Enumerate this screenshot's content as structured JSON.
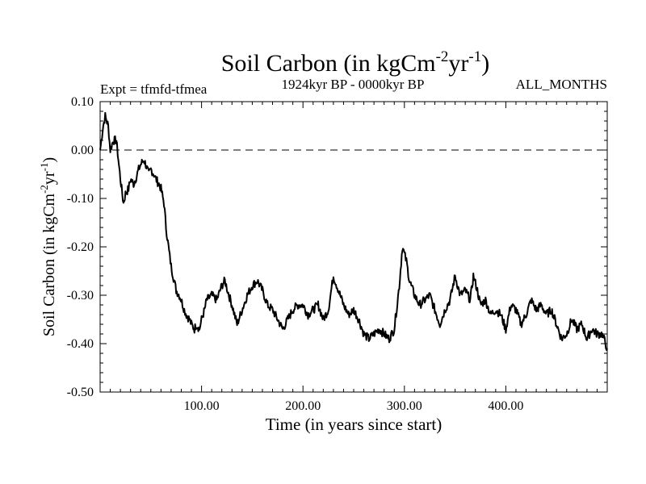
{
  "chart_data": {
    "type": "line",
    "title": "Soil Carbon (in kgCm",
    "title_sup1": "-2",
    "title_mid": "yr",
    "title_sup2": "-1",
    "title_end": ")",
    "subtitle": "1924kyr BP - 0000kyr BP",
    "experiment_label": "Expt = tfmfd-tfmea",
    "period_label": "ALL_MONTHS",
    "xlabel": "Time (in years since start)",
    "ylabel": "Soil Carbon (in kgCm",
    "ylabel_sup1": "-2",
    "ylabel_mid": "yr",
    "ylabel_sup2": "-1",
    "ylabel_end": ")",
    "xlim": [
      0,
      500
    ],
    "ylim": [
      -0.5,
      0.1
    ],
    "x_ticks": [
      100,
      200,
      300,
      400
    ],
    "x_tick_labels": [
      "100.00",
      "200.00",
      "300.00",
      "400.00"
    ],
    "y_ticks": [
      0.1,
      0.0,
      -0.1,
      -0.2,
      -0.3,
      -0.4,
      -0.5
    ],
    "y_tick_labels": [
      "0.10",
      "0.00",
      "-0.10",
      "-0.20",
      "-0.30",
      "-0.40",
      "-0.50"
    ],
    "reference_line": 0.0,
    "line_color": "#000000",
    "series": [
      {
        "name": "Soil Carbon",
        "x": [
          0,
          3,
          5,
          8,
          10,
          13,
          16,
          18,
          20,
          23,
          25,
          28,
          30,
          33,
          35,
          38,
          40,
          43,
          45,
          48,
          50,
          53,
          55,
          58,
          60,
          63,
          65,
          68,
          70,
          73,
          75,
          78,
          80,
          83,
          85,
          88,
          90,
          93,
          95,
          98,
          100,
          103,
          105,
          110,
          115,
          120,
          123,
          127,
          130,
          135,
          140,
          145,
          150,
          155,
          160,
          165,
          170,
          175,
          180,
          185,
          190,
          195,
          200,
          205,
          210,
          215,
          220,
          225,
          230,
          235,
          240,
          245,
          250,
          255,
          260,
          265,
          270,
          275,
          280,
          285,
          290,
          295,
          298,
          302,
          305,
          310,
          315,
          320,
          325,
          330,
          335,
          340,
          345,
          350,
          355,
          360,
          365,
          368,
          372,
          375,
          380,
          385,
          390,
          395,
          400,
          405,
          410,
          415,
          420,
          425,
          430,
          435,
          440,
          445,
          450,
          455,
          460,
          465,
          470,
          475,
          480,
          485,
          490,
          495,
          500
        ],
        "values": [
          0.0,
          0.05,
          0.07,
          0.05,
          0.0,
          0.02,
          0.02,
          -0.02,
          -0.06,
          -0.11,
          -0.09,
          -0.08,
          -0.06,
          -0.07,
          -0.06,
          -0.04,
          -0.03,
          -0.02,
          -0.03,
          -0.05,
          -0.04,
          -0.05,
          -0.06,
          -0.07,
          -0.08,
          -0.11,
          -0.16,
          -0.21,
          -0.24,
          -0.27,
          -0.29,
          -0.3,
          -0.31,
          -0.33,
          -0.34,
          -0.35,
          -0.36,
          -0.37,
          -0.36,
          -0.37,
          -0.35,
          -0.33,
          -0.31,
          -0.3,
          -0.31,
          -0.28,
          -0.27,
          -0.3,
          -0.32,
          -0.36,
          -0.33,
          -0.3,
          -0.28,
          -0.27,
          -0.29,
          -0.32,
          -0.33,
          -0.35,
          -0.37,
          -0.35,
          -0.33,
          -0.32,
          -0.32,
          -0.34,
          -0.33,
          -0.32,
          -0.35,
          -0.33,
          -0.26,
          -0.29,
          -0.32,
          -0.34,
          -0.33,
          -0.35,
          -0.38,
          -0.39,
          -0.38,
          -0.37,
          -0.38,
          -0.39,
          -0.37,
          -0.28,
          -0.2,
          -0.23,
          -0.27,
          -0.3,
          -0.32,
          -0.31,
          -0.3,
          -0.33,
          -0.36,
          -0.33,
          -0.31,
          -0.26,
          -0.3,
          -0.29,
          -0.31,
          -0.26,
          -0.29,
          -0.32,
          -0.31,
          -0.34,
          -0.33,
          -0.34,
          -0.37,
          -0.32,
          -0.33,
          -0.36,
          -0.34,
          -0.31,
          -0.33,
          -0.32,
          -0.34,
          -0.33,
          -0.36,
          -0.39,
          -0.38,
          -0.35,
          -0.37,
          -0.36,
          -0.39,
          -0.37,
          -0.38,
          -0.38,
          -0.41
        ]
      }
    ]
  }
}
